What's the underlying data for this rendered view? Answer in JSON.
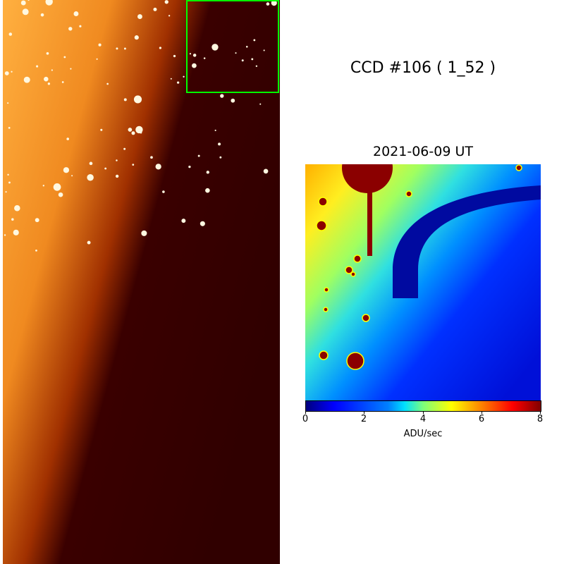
{
  "title": "CCD #106 ( 1_52 )",
  "zoom_panel": {
    "date_label": "2021-06-09 UT"
  },
  "colorbar": {
    "label": "ADU/sec",
    "range": [
      0,
      8
    ],
    "colormap": "jet",
    "ticks": [
      "0",
      "2",
      "4",
      "6",
      "8"
    ]
  },
  "left_panel": {
    "colormap": "afmhot",
    "highlight_box_color": "#00ff00"
  }
}
